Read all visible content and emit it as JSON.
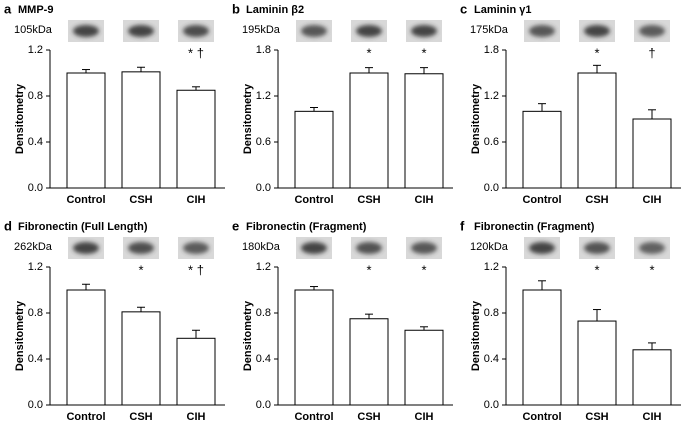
{
  "chart_data": [
    {
      "type": "bar",
      "panel": "a",
      "title": "MMP-9",
      "band_label": "105kDa",
      "ylabel": "Densitometry",
      "categories": [
        "Control",
        "CSH",
        "CIH"
      ],
      "values": [
        1.0,
        1.01,
        0.85
      ],
      "errors": [
        0.03,
        0.04,
        0.03
      ],
      "annotations": [
        null,
        null,
        "* †"
      ],
      "color": "#ffffff",
      "ylim": [
        0,
        1.2
      ],
      "yticks": [
        {
          "value": 0,
          "label": "0.0"
        },
        0.4,
        0.8,
        1.2
      ]
    },
    {
      "type": "bar",
      "panel": "b",
      "title": "Laminin β2",
      "band_label": "195kDa",
      "ylabel": "Densitometry",
      "categories": [
        "Control",
        "CSH",
        "CIH"
      ],
      "values": [
        1.0,
        1.5,
        1.49
      ],
      "errors": [
        0.05,
        0.07,
        0.08
      ],
      "annotations": [
        null,
        "*",
        "*"
      ],
      "color": "#ffffff",
      "ylim": [
        0,
        1.8
      ],
      "yticks": [
        {
          "value": 0,
          "label": "0.0"
        },
        0.6,
        1.2,
        1.8
      ]
    },
    {
      "type": "bar",
      "panel": "c",
      "title": "Laminin γ1",
      "band_label": "175kDa",
      "ylabel": "Densitometry",
      "categories": [
        "Control",
        "CSH",
        "CIH"
      ],
      "values": [
        1.0,
        1.5,
        0.9
      ],
      "errors": [
        0.1,
        0.1,
        0.12
      ],
      "annotations": [
        null,
        "*",
        "†"
      ],
      "color": "#ffffff",
      "ylim": [
        0,
        1.8
      ],
      "yticks": [
        {
          "value": 0,
          "label": "0.0"
        },
        0.6,
        1.2,
        1.8
      ]
    },
    {
      "type": "bar",
      "panel": "d",
      "title": "Fibronectin (Full Length)",
      "band_label": "262kDa",
      "ylabel": "Densitometry",
      "categories": [
        "Control",
        "CSH",
        "CIH"
      ],
      "values": [
        1.0,
        0.81,
        0.58
      ],
      "errors": [
        0.05,
        0.04,
        0.07
      ],
      "annotations": [
        null,
        "*",
        "* †"
      ],
      "color": "#ffffff",
      "ylim": [
        0,
        1.2
      ],
      "yticks": [
        {
          "value": 0,
          "label": "0.0"
        },
        0.4,
        0.8,
        1.2
      ]
    },
    {
      "type": "bar",
      "panel": "e",
      "title": "Fibronectin (Fragment)",
      "band_label": "180kDa",
      "ylabel": "Densitometry",
      "categories": [
        "Control",
        "CSH",
        "CIH"
      ],
      "values": [
        1.0,
        0.75,
        0.65
      ],
      "errors": [
        0.03,
        0.04,
        0.03
      ],
      "annotations": [
        null,
        "*",
        "*"
      ],
      "color": "#ffffff",
      "ylim": [
        0,
        1.2
      ],
      "yticks": [
        {
          "value": 0,
          "label": "0.0"
        },
        0.4,
        0.8,
        1.2
      ]
    },
    {
      "type": "bar",
      "panel": "f",
      "title": "Fibronectin (Fragment)",
      "band_label": "120kDa",
      "ylabel": "Densitometry",
      "categories": [
        "Control",
        "CSH",
        "CIH"
      ],
      "values": [
        1.0,
        0.73,
        0.48
      ],
      "errors": [
        0.08,
        0.1,
        0.06
      ],
      "annotations": [
        null,
        "*",
        "*"
      ],
      "color": "#ffffff",
      "ylim": [
        0,
        1.2
      ],
      "yticks": [
        {
          "value": 0,
          "label": "0.0"
        },
        0.4,
        0.8,
        1.2
      ]
    }
  ]
}
